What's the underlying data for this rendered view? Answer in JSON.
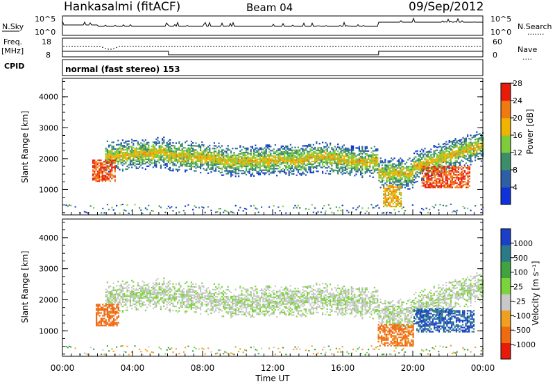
{
  "header": {
    "station": "Hankasalmi (fitACF)",
    "beam": "Beam 04",
    "date": "09/Sep/2012"
  },
  "noise_panel": {
    "left_label": "N.Sky",
    "right_label": "N.Search",
    "ticks_top": "10^5",
    "ticks_bottom": "10^0",
    "right_dots": "......."
  },
  "freq_panel": {
    "left_label_1": "Freq.",
    "left_label_2": "[MHz]",
    "left_top": "18",
    "left_bottom": "8",
    "right_label": "Nave",
    "right_top": "60",
    "right_bottom": "0",
    "right_dots": "....",
    "cpid_label": "CPID"
  },
  "cpid_panel": {
    "text": "normal (fast stereo) 153"
  },
  "power_panel": {
    "ylabel": "Slant Range [km]",
    "yticks": [
      "1000",
      "2000",
      "3000",
      "4000"
    ],
    "colorbar_label": "Power [dB]",
    "colorbar_ticks": [
      "4",
      "8",
      "12",
      "16",
      "20",
      "24",
      "28"
    ],
    "colorbar_colors": [
      "#0f33d8",
      "#2c5fa5",
      "#3b8e6a",
      "#7ecb3c",
      "#f0b400",
      "#f07a10",
      "#e81b0b"
    ]
  },
  "velocity_panel": {
    "ylabel": "Slant Range [km]",
    "yticks": [
      "1000",
      "2000",
      "3000",
      "4000"
    ],
    "colorbar_label": "Velocity [m s⁻¹]",
    "colorbar_ticks": [
      "1000",
      "500",
      "100",
      "25",
      "-25",
      "-100",
      "-500",
      "-1000"
    ],
    "colorbar_colors": [
      "#1b3fc8",
      "#2b7a8a",
      "#3fa33f",
      "#7bd43b",
      "#c8c8c8",
      "#f0a020",
      "#f06a10",
      "#e81b0b"
    ]
  },
  "xaxis": {
    "xlabel": "Time UT",
    "xticks": [
      "00:00",
      "04:00",
      "08:00",
      "12:00",
      "16:00",
      "20:00",
      "00:00"
    ]
  },
  "chart_data": [
    {
      "type": "heatmap",
      "title": "Power",
      "xlabel": "Time UT",
      "ylabel": "Slant Range [km]",
      "xlim_hours": [
        0,
        24
      ],
      "ylim": [
        180,
        4600
      ],
      "colorbar": {
        "label": "Power [dB]",
        "ticks": [
          4,
          8,
          12,
          16,
          20,
          24,
          28
        ]
      },
      "features": [
        {
          "name": "main echo band",
          "t_start": 2.5,
          "t_end": 24.0,
          "range_center_km": 1900,
          "power_db": 12
        },
        {
          "name": "morning enhancement",
          "t_start": 1.7,
          "t_end": 3.0,
          "range_center_km": 1600,
          "power_db": 28
        },
        {
          "name": "evening enhancement",
          "t_start": 20.5,
          "t_end": 23.2,
          "range_center_km": 1400,
          "power_db": 28
        },
        {
          "name": "near-range burst",
          "t_start": 18.3,
          "t_end": 19.3,
          "range_center_km": 780,
          "power_db": 22
        }
      ]
    },
    {
      "type": "heatmap",
      "title": "Velocity",
      "xlabel": "Time UT",
      "ylabel": "Slant Range [km]",
      "xlim_hours": [
        0,
        24
      ],
      "ylim": [
        180,
        4600
      ],
      "colorbar": {
        "label": "Velocity [m s⁻¹]",
        "ticks": [
          1000,
          500,
          100,
          25,
          -25,
          -100,
          -500,
          -1000
        ]
      },
      "features": [
        {
          "name": "ground scatter band",
          "t_start": 2.8,
          "t_end": 24.0,
          "range_center_km": 1800,
          "velocity": 0
        },
        {
          "name": "morning away flow",
          "t_start": 1.9,
          "t_end": 3.2,
          "range_center_km": 1500,
          "velocity": -300
        },
        {
          "name": "evening toward flow",
          "t_start": 20.2,
          "t_end": 23.5,
          "range_center_km": 1300,
          "velocity": 500
        },
        {
          "name": "near-range away flow",
          "t_start": 18.0,
          "t_end": 20.0,
          "range_center_km": 850,
          "velocity": -150
        }
      ]
    }
  ]
}
